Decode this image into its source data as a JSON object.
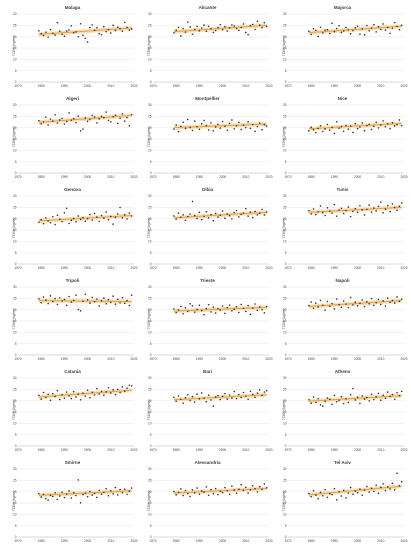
{
  "chart_data": {
    "type": "scatter",
    "layout": "grid-6x3",
    "ylabel": "TCWV (kg/m²)",
    "x_range": [
      1979,
      2019
    ],
    "y_range": [
      0,
      30
    ],
    "x_ticks": [
      1970,
      1980,
      1990,
      2000,
      2010,
      2020
    ],
    "y_ticks": [
      0,
      5,
      10,
      15,
      20,
      25,
      30
    ],
    "colors": {
      "points": "#303030",
      "trend": "#e8a23c",
      "band": "#f7d8b0",
      "grid": "#e0e0e0",
      "text": "#404040"
    },
    "panels": [
      {
        "title": "Malaga",
        "trend": [
          21.0,
          23.8
        ],
        "values": [
          22.6,
          21.3,
          20.5,
          22.0,
          19.8,
          23.1,
          21.5,
          20.7,
          26.2,
          22.4,
          21.0,
          20.2,
          22.5,
          23.0,
          24.8,
          21.7,
          22.1,
          20.0,
          25.7,
          20.6,
          19.3,
          17.6,
          24.0,
          25.2,
          22.8,
          23.9,
          21.3,
          20.9,
          24.4,
          22.2,
          23.1,
          21.6,
          25.0,
          22.7,
          24.2,
          23.5,
          22.4,
          26.3,
          24.1,
          22.9,
          23.4
        ]
      },
      {
        "title": "Alicante",
        "trend": [
          22.2,
          25.0
        ],
        "values": [
          21.7,
          22.9,
          24.1,
          20.3,
          23.6,
          22.0,
          26.4,
          24.3,
          21.1,
          23.2,
          24.5,
          22.6,
          23.8,
          25.1,
          22.4,
          24.6,
          23.5,
          21.9,
          22.7,
          24.0,
          25.3,
          23.1,
          24.4,
          22.5,
          23.9,
          25.2,
          24.7,
          23.6,
          22.8,
          24.1,
          25.6,
          21.8,
          20.9,
          24.9,
          25.4,
          23.2,
          26.8,
          25.1,
          24.0,
          26.2,
          24.5
        ]
      },
      {
        "title": "Majorca",
        "trend": [
          21.8,
          24.6
        ],
        "values": [
          22.4,
          21.0,
          23.5,
          22.8,
          20.1,
          24.2,
          21.7,
          22.9,
          23.1,
          21.4,
          25.9,
          22.2,
          23.6,
          24.8,
          21.9,
          22.5,
          24.1,
          23.0,
          21.3,
          22.7,
          23.9,
          24.6,
          21.1,
          23.4,
          20.8,
          24.9,
          22.6,
          23.8,
          25.3,
          22.1,
          24.4,
          23.2,
          25.6,
          22.9,
          24.0,
          21.5,
          23.7,
          26.2,
          24.5,
          23.1,
          25.0
        ]
      },
      {
        "title": "Algeri",
        "trend": [
          22.4,
          25.4
        ],
        "values": [
          23.1,
          21.7,
          22.5,
          24.6,
          21.2,
          23.8,
          22.9,
          25.7,
          22.0,
          23.4,
          24.1,
          21.6,
          22.7,
          26.5,
          23.3,
          24.0,
          22.2,
          25.1,
          18.6,
          19.4,
          24.3,
          22.8,
          23.6,
          25.4,
          24.7,
          22.1,
          23.9,
          25.0,
          24.4,
          26.9,
          23.2,
          22.6,
          24.8,
          25.5,
          21.9,
          24.2,
          26.1,
          22.9,
          24.5,
          20.8,
          25.7
        ]
      },
      {
        "title": "Montpellier",
        "trend": [
          20.0,
          21.6
        ],
        "values": [
          19.4,
          21.2,
          18.3,
          20.6,
          22.4,
          19.7,
          23.6,
          20.1,
          18.8,
          22.9,
          20.4,
          19.3,
          21.7,
          23.2,
          20.9,
          19.0,
          22.1,
          18.6,
          20.3,
          21.5,
          19.8,
          22.7,
          20.6,
          18.9,
          21.9,
          23.4,
          19.5,
          20.8,
          22.3,
          19.2,
          21.1,
          20.0,
          22.6,
          19.7,
          21.4,
          18.4,
          20.5,
          22.0,
          19.1,
          21.3,
          20.7
        ]
      },
      {
        "title": "Nice",
        "trend": [
          19.5,
          21.9
        ],
        "values": [
          18.6,
          20.2,
          19.1,
          17.8,
          19.7,
          20.8,
          18.3,
          19.5,
          21.4,
          18.9,
          20.1,
          17.5,
          22.6,
          19.8,
          20.5,
          18.4,
          21.0,
          19.3,
          20.7,
          17.9,
          21.8,
          19.6,
          20.3,
          22.1,
          18.7,
          20.9,
          21.5,
          19.2,
          20.6,
          22.4,
          19.9,
          21.2,
          23.0,
          20.4,
          21.7,
          19.6,
          22.2,
          20.8,
          21.3,
          23.4,
          20.9
        ]
      },
      {
        "title": "Genova",
        "trend": [
          19.0,
          21.4
        ],
        "values": [
          18.4,
          19.6,
          17.8,
          20.3,
          19.0,
          18.2,
          20.9,
          17.4,
          21.5,
          19.8,
          18.7,
          22.6,
          24.6,
          17.9,
          19.3,
          20.1,
          18.6,
          21.2,
          19.7,
          20.5,
          18.9,
          20.0,
          21.8,
          19.4,
          22.3,
          20.7,
          18.8,
          21.4,
          20.2,
          22.9,
          19.5,
          21.0,
          17.6,
          20.6,
          22.1,
          24.9,
          20.3,
          21.7,
          19.9,
          22.5,
          21.2
        ]
      },
      {
        "title": "Olbia",
        "trend": [
          20.4,
          22.8
        ],
        "values": [
          21.2,
          19.8,
          22.4,
          20.6,
          21.7,
          19.3,
          20.9,
          22.0,
          27.6,
          21.4,
          20.1,
          22.8,
          19.6,
          21.0,
          23.1,
          20.4,
          21.8,
          19.1,
          22.3,
          20.7,
          21.5,
          23.4,
          20.2,
          22.1,
          21.3,
          19.9,
          22.7,
          23.6,
          20.8,
          21.9,
          22.5,
          24.4,
          21.1,
          22.9,
          20.5,
          23.2,
          21.7,
          22.4,
          24.1,
          21.6,
          23.0
        ]
      },
      {
        "title": "Tunis",
        "trend": [
          22.8,
          25.0
        ],
        "values": [
          23.5,
          22.1,
          24.3,
          21.8,
          23.0,
          25.6,
          22.7,
          21.4,
          24.8,
          23.3,
          22.5,
          26.2,
          21.1,
          23.8,
          24.6,
          22.3,
          23.6,
          25.1,
          20.9,
          23.2,
          24.4,
          22.8,
          25.7,
          23.9,
          21.6,
          24.1,
          26.0,
          22.9,
          24.7,
          23.4,
          25.4,
          27.3,
          22.6,
          24.2,
          25.8,
          23.1,
          26.5,
          24.9,
          23.7,
          25.5,
          26.9
        ]
      },
      {
        "title": "Tripoli",
        "trend": [
          24.0,
          23.6
        ],
        "values": [
          24.8,
          23.1,
          25.6,
          24.2,
          22.7,
          26.1,
          23.6,
          24.9,
          22.3,
          25.2,
          23.8,
          24.5,
          21.9,
          25.8,
          23.3,
          24.1,
          26.4,
          20.1,
          19.5,
          23.7,
          26.8,
          24.3,
          22.9,
          25.4,
          23.5,
          24.7,
          21.6,
          23.9,
          25.1,
          22.6,
          24.4,
          23.2,
          26.0,
          22.4,
          24.6,
          23.0,
          25.3,
          22.8,
          24.0,
          21.8,
          26.4
        ]
      },
      {
        "title": "Trieste",
        "trend": [
          19.4,
          21.0
        ],
        "values": [
          20.3,
          18.7,
          19.9,
          21.4,
          18.2,
          20.8,
          19.3,
          22.6,
          21.7,
          18.9,
          20.1,
          21.9,
          19.6,
          17.8,
          20.5,
          22.2,
          19.0,
          21.1,
          18.5,
          20.4,
          19.8,
          21.6,
          18.4,
          20.9,
          22.0,
          19.5,
          20.2,
          21.3,
          18.8,
          22.3,
          20.6,
          19.2,
          21.8,
          17.9,
          20.7,
          22.5,
          19.7,
          21.2,
          20.0,
          18.6,
          21.4
        ]
      },
      {
        "title": "Napoli",
        "trend": [
          21.4,
          24.0
        ],
        "values": [
          21.8,
          23.4,
          20.6,
          22.9,
          21.2,
          24.1,
          22.0,
          19.8,
          23.6,
          21.5,
          22.7,
          20.3,
          24.7,
          22.2,
          21.0,
          23.8,
          22.5,
          20.9,
          25.4,
          22.1,
          23.3,
          21.7,
          22.8,
          24.3,
          21.4,
          23.5,
          22.6,
          24.9,
          21.9,
          23.1,
          24.5,
          22.3,
          23.9,
          21.6,
          25.1,
          23.2,
          24.0,
          22.9,
          25.6,
          23.7,
          24.6
        ]
      },
      {
        "title": "Catania",
        "trend": [
          21.6,
          24.6
        ],
        "values": [
          22.3,
          20.7,
          23.6,
          21.4,
          22.8,
          20.2,
          23.1,
          21.9,
          24.4,
          20.5,
          22.6,
          21.1,
          23.8,
          22.1,
          20.9,
          24.0,
          21.6,
          22.9,
          20.4,
          23.3,
          22.0,
          24.6,
          21.3,
          23.7,
          22.5,
          25.3,
          23.0,
          24.1,
          22.4,
          23.9,
          25.7,
          23.4,
          24.8,
          22.7,
          25.0,
          23.6,
          26.1,
          24.2,
          25.5,
          26.8,
          26.5
        ]
      },
      {
        "title": "Bari",
        "trend": [
          20.4,
          22.6
        ],
        "values": [
          21.5,
          19.8,
          22.1,
          20.6,
          18.9,
          21.3,
          22.6,
          20.1,
          21.8,
          19.4,
          22.9,
          20.8,
          23.4,
          21.1,
          19.6,
          22.4,
          20.3,
          17.6,
          21.6,
          22.2,
          20.5,
          21.9,
          23.1,
          20.7,
          22.5,
          21.2,
          24.0,
          20.9,
          22.7,
          21.4,
          23.6,
          22.0,
          20.6,
          24.2,
          22.8,
          21.5,
          23.3,
          24.7,
          22.3,
          23.8,
          24.4
        ]
      },
      {
        "title": "Athens",
        "trend": [
          19.8,
          22.2
        ],
        "values": [
          20.4,
          18.9,
          21.6,
          19.3,
          20.9,
          18.2,
          17.6,
          19.8,
          21.2,
          20.6,
          18.4,
          22.3,
          19.5,
          20.1,
          21.8,
          18.7,
          20.8,
          19.2,
          22.6,
          25.4,
          20.3,
          21.5,
          18.8,
          22.1,
          20.7,
          21.4,
          19.9,
          22.8,
          20.5,
          21.7,
          23.2,
          20.2,
          22.4,
          21.1,
          23.8,
          21.9,
          22.7,
          20.6,
          23.5,
          22.2,
          24.1
        ]
      },
      {
        "title": "Smirne",
        "trend": [
          18.4,
          20.4
        ],
        "values": [
          19.1,
          17.6,
          18.8,
          16.9,
          16.3,
          18.4,
          17.9,
          19.5,
          16.6,
          18.1,
          19.8,
          17.4,
          18.9,
          20.3,
          17.2,
          19.6,
          18.3,
          25.2,
          15.1,
          18.7,
          19.4,
          17.8,
          20.1,
          18.5,
          19.2,
          17.5,
          20.6,
          18.9,
          19.7,
          21.3,
          18.2,
          20.4,
          19.0,
          21.8,
          18.6,
          20.9,
          19.5,
          21.1,
          18.8,
          20.2,
          21.6
        ]
      },
      {
        "title": "Alessandria",
        "trend": [
          19.4,
          21.4
        ],
        "values": [
          20.1,
          18.6,
          19.7,
          21.2,
          18.3,
          20.5,
          19.2,
          17.9,
          20.8,
          19.5,
          21.6,
          18.9,
          20.3,
          19.8,
          22.1,
          18.4,
          20.9,
          19.1,
          21.4,
          18.7,
          20.2,
          19.6,
          21.8,
          20.4,
          18.8,
          22.4,
          20.7,
          19.3,
          21.1,
          23.1,
          20.6,
          21.9,
          19.4,
          20.8,
          22.6,
          21.3,
          19.9,
          22.2,
          21.0,
          23.4,
          21.7
        ]
      },
      {
        "title": "Tel Aviv",
        "trend": [
          18.6,
          22.4
        ],
        "values": [
          19.2,
          17.8,
          20.4,
          18.5,
          16.9,
          19.7,
          18.2,
          20.9,
          17.5,
          19.1,
          18.7,
          21.3,
          16.4,
          19.9,
          18.1,
          20.6,
          17.3,
          19.4,
          21.8,
          18.9,
          20.2,
          19.5,
          21.1,
          18.4,
          20.7,
          22.3,
          19.8,
          21.5,
          20.1,
          22.8,
          19.3,
          21.9,
          23.4,
          20.5,
          22.1,
          21.2,
          23.7,
          20.8,
          28.1,
          22.6,
          24.4
        ]
      }
    ]
  }
}
